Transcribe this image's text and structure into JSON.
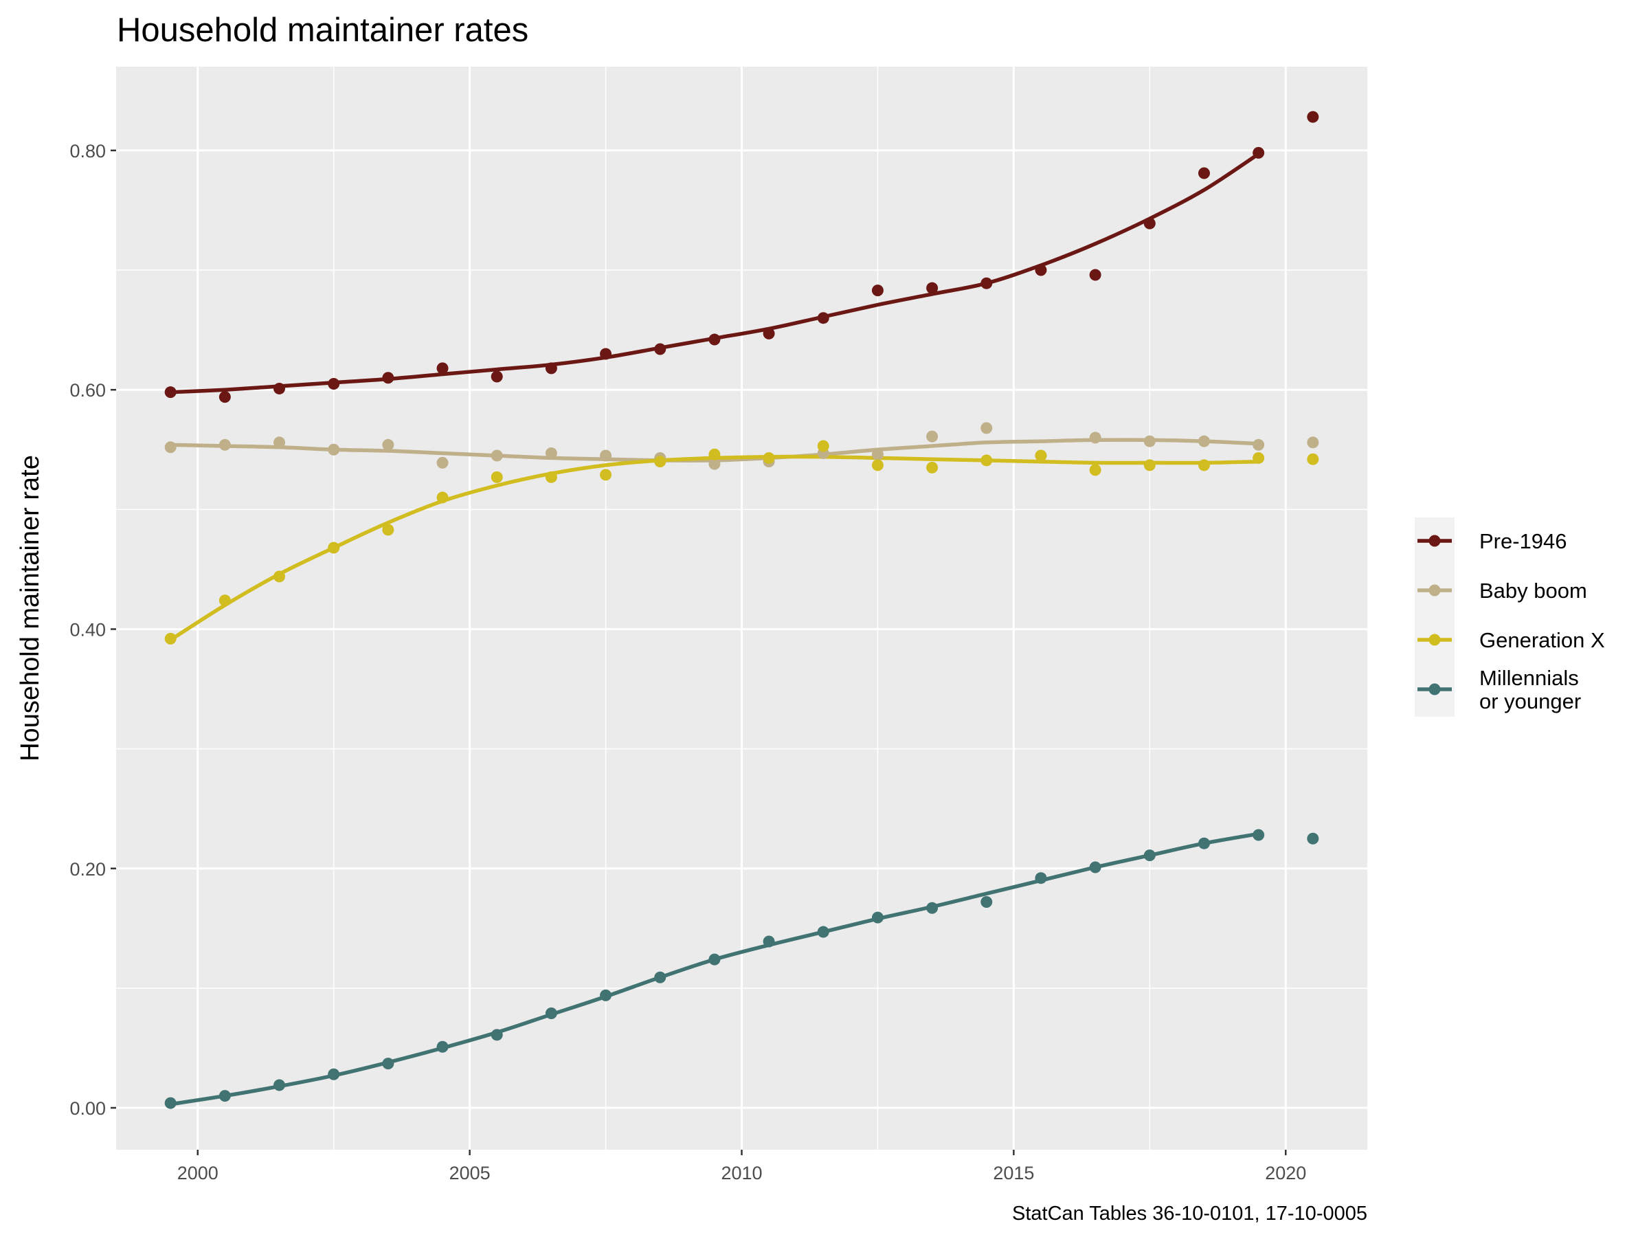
{
  "chart_data": {
    "type": "line",
    "title": "Household maintainer rates",
    "xlabel": "",
    "ylabel": "Household maintainer rate",
    "caption": "StatCan Tables 36-10-0101, 17-10-0005",
    "xlim": [
      1998.5,
      2021.5
    ],
    "ylim": [
      -0.035,
      0.87
    ],
    "x_ticks": [
      2000,
      2005,
      2010,
      2015,
      2020
    ],
    "y_ticks": [
      0.0,
      0.2,
      0.4,
      0.6,
      0.8
    ],
    "y_tick_labels": [
      "0.00",
      "0.20",
      "0.40",
      "0.60",
      "0.80"
    ],
    "grid": true,
    "legend_position": "right",
    "x": [
      1999.5,
      2000.5,
      2001.5,
      2002.5,
      2003.5,
      2004.5,
      2005.5,
      2006.5,
      2007.5,
      2008.5,
      2009.5,
      2010.5,
      2011.5,
      2012.5,
      2013.5,
      2014.5,
      2015.5,
      2016.5,
      2017.5,
      2018.5,
      2019.5,
      2020.5
    ],
    "series": [
      {
        "name": "Pre-1946",
        "color": "#6b1815",
        "points": [
          0.598,
          0.594,
          0.601,
          0.605,
          0.61,
          0.618,
          0.611,
          0.618,
          0.63,
          0.634,
          0.642,
          0.647,
          0.66,
          0.683,
          0.685,
          0.689,
          0.7,
          0.696,
          0.739,
          0.781,
          0.798,
          0.828
        ],
        "smooth": [
          0.598,
          0.6,
          0.603,
          0.606,
          0.609,
          0.613,
          0.617,
          0.621,
          0.627,
          0.635,
          0.643,
          0.651,
          0.661,
          0.671,
          0.68,
          0.689,
          0.704,
          0.722,
          0.743,
          0.767,
          0.797
        ]
      },
      {
        "name": "Baby boom",
        "color": "#bfb08a",
        "points": [
          0.552,
          0.554,
          0.556,
          0.55,
          0.554,
          0.539,
          0.545,
          0.547,
          0.545,
          0.543,
          0.538,
          0.54,
          0.547,
          0.546,
          0.561,
          0.568,
          0.545,
          0.56,
          0.557,
          0.557,
          0.554,
          0.556
        ],
        "smooth": [
          0.554,
          0.553,
          0.552,
          0.55,
          0.549,
          0.547,
          0.545,
          0.543,
          0.542,
          0.541,
          0.541,
          0.543,
          0.546,
          0.55,
          0.553,
          0.556,
          0.557,
          0.558,
          0.558,
          0.557,
          0.555
        ]
      },
      {
        "name": "Generation X",
        "color": "#d2bd20",
        "points": [
          0.392,
          0.424,
          0.444,
          0.468,
          0.483,
          0.51,
          0.527,
          0.527,
          0.529,
          0.54,
          0.546,
          0.543,
          0.553,
          0.537,
          0.535,
          0.541,
          0.545,
          0.533,
          0.537,
          0.537,
          0.543,
          0.542
        ],
        "smooth": [
          0.391,
          0.42,
          0.446,
          0.468,
          0.489,
          0.507,
          0.52,
          0.53,
          0.537,
          0.541,
          0.543,
          0.544,
          0.544,
          0.543,
          0.542,
          0.541,
          0.54,
          0.539,
          0.539,
          0.539,
          0.54
        ]
      },
      {
        "name": "Millennials\nor younger",
        "color": "#427373",
        "points": [
          0.004,
          0.01,
          0.019,
          0.028,
          0.037,
          0.051,
          0.061,
          0.079,
          0.094,
          0.109,
          0.124,
          0.139,
          0.147,
          0.159,
          0.167,
          0.172,
          0.192,
          0.201,
          0.211,
          0.221,
          0.228,
          0.225
        ],
        "smooth": [
          0.003,
          0.01,
          0.018,
          0.027,
          0.038,
          0.05,
          0.063,
          0.078,
          0.093,
          0.109,
          0.124,
          0.136,
          0.147,
          0.158,
          0.168,
          0.179,
          0.19,
          0.201,
          0.211,
          0.221,
          0.229
        ]
      }
    ]
  },
  "legend": {
    "items": [
      {
        "label_lines": [
          "Pre-1946"
        ]
      },
      {
        "label_lines": [
          "Baby boom"
        ]
      },
      {
        "label_lines": [
          "Generation X"
        ]
      },
      {
        "label_lines": [
          "Millennials",
          "or younger"
        ]
      }
    ]
  }
}
